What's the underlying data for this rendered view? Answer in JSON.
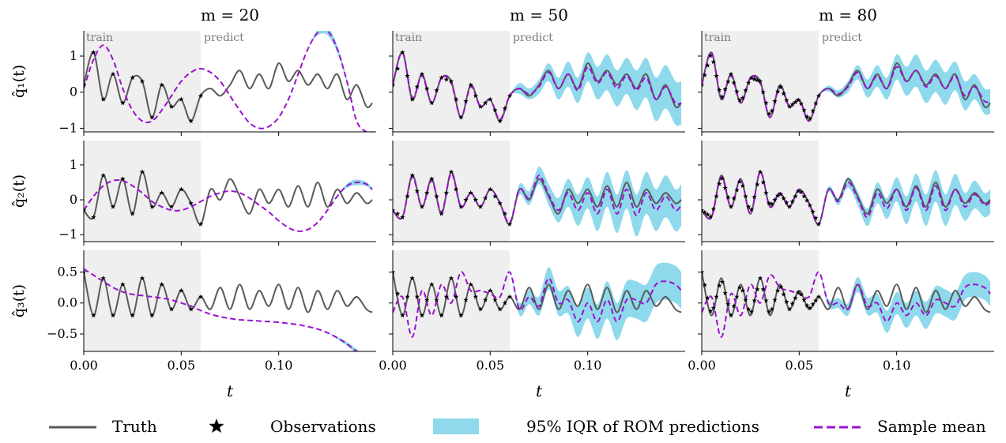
{
  "colors": {
    "truth": "#5a5a5a",
    "observations": "#000000",
    "band": "#8fd9ec",
    "mean": "#9b10cf",
    "train_region": "#efefef",
    "region_text": "#7a7a7a"
  },
  "legend": [
    {
      "label": "Truth",
      "kind": "line",
      "icon": "solid-gray-line"
    },
    {
      "label": "Observations",
      "kind": "marker",
      "icon": "star-icon"
    },
    {
      "label": "95% IQR of ROM predictions",
      "kind": "band",
      "icon": "cyan-band-swatch"
    },
    {
      "label": "Sample mean",
      "kind": "dashed",
      "icon": "dashed-purple-line"
    }
  ],
  "chart_data": {
    "type": "line",
    "layout": "3x3 grid",
    "column_titles": [
      "m = 20",
      "m = 50",
      "m = 80"
    ],
    "row_labels": [
      "q̂₁(t)",
      "q̂₂(t)",
      "q̂₃(t)"
    ],
    "xlabel": "t",
    "xlim": [
      0,
      0.15
    ],
    "xticks": [
      0.0,
      0.05,
      0.1
    ],
    "xtick_labels": [
      "0.00",
      "0.05",
      "0.10"
    ],
    "train_end": 0.06,
    "region_labels": {
      "train": "train",
      "predict": "predict"
    },
    "rows": [
      {
        "ylim": [
          -1.1,
          1.7
        ],
        "yticks": [
          -1,
          0,
          1
        ],
        "ytick_labels": [
          "−1",
          "0",
          "1"
        ]
      },
      {
        "ylim": [
          -1.2,
          1.7
        ],
        "yticks": [
          -1,
          0,
          1
        ],
        "ytick_labels": [
          "−1",
          "0",
          "1"
        ]
      },
      {
        "ylim": [
          -0.78,
          0.85
        ],
        "yticks": [
          -0.5,
          0.0,
          0.5
        ],
        "ytick_labels": [
          "−0.5",
          "0.0",
          "0.5"
        ]
      }
    ],
    "x": [
      0.0,
      0.005,
      0.01,
      0.015,
      0.02,
      0.025,
      0.03,
      0.035,
      0.04,
      0.045,
      0.05,
      0.055,
      0.06,
      0.065,
      0.07,
      0.075,
      0.08,
      0.085,
      0.09,
      0.095,
      0.1,
      0.105,
      0.11,
      0.115,
      0.12,
      0.125,
      0.13,
      0.135,
      0.14,
      0.145,
      0.148
    ],
    "truth": [
      [
        0.2,
        1.1,
        -0.2,
        0.5,
        -0.3,
        0.4,
        0.3,
        -0.7,
        0.2,
        -0.4,
        -0.2,
        -0.8,
        -0.1,
        0.1,
        -0.1,
        0.2,
        0.6,
        0.1,
        0.5,
        0.1,
        0.8,
        0.3,
        0.6,
        0.2,
        0.5,
        0.1,
        0.5,
        -0.2,
        0.2,
        -0.4,
        -0.3
      ],
      [
        -0.3,
        -0.5,
        0.7,
        -0.2,
        0.6,
        -0.4,
        0.8,
        -0.2,
        0.2,
        -0.2,
        0.3,
        -0.1,
        -0.7,
        0.3,
        0.0,
        0.6,
        0.1,
        -0.4,
        0.3,
        -0.1,
        0.3,
        -0.2,
        0.4,
        -0.2,
        0.5,
        -0.2,
        0.3,
        -0.1,
        0.2,
        -0.1,
        0.0
      ],
      [
        0.5,
        -0.2,
        0.4,
        -0.2,
        0.3,
        -0.2,
        0.4,
        -0.2,
        0.3,
        -0.1,
        0.2,
        -0.1,
        0.1,
        -0.1,
        0.25,
        -0.1,
        0.3,
        -0.1,
        0.2,
        -0.05,
        0.3,
        -0.1,
        0.25,
        -0.15,
        0.2,
        -0.1,
        0.2,
        -0.05,
        0.1,
        -0.1,
        -0.15
      ]
    ],
    "panels": [
      {
        "row": 0,
        "col": 0,
        "mean": [
          0.1,
          0.9,
          1.3,
          0.9,
          0.1,
          -0.5,
          -0.8,
          -0.8,
          -0.5,
          -0.1,
          0.3,
          0.55,
          0.65,
          0.55,
          0.3,
          -0.1,
          -0.5,
          -0.85,
          -1.0,
          -0.95,
          -0.7,
          -0.2,
          0.5,
          1.2,
          1.65,
          1.7,
          1.2,
          0.3,
          -0.8,
          -1.1,
          -1.1
        ],
        "half_width": [
          0,
          0,
          0,
          0,
          0,
          0,
          0,
          0,
          0,
          0,
          0,
          0,
          0,
          0,
          0,
          0,
          0,
          0,
          0,
          0,
          0,
          0,
          0,
          0,
          0.08,
          0.12,
          0.1,
          0.05,
          0,
          0,
          0
        ]
      },
      {
        "row": 0,
        "col": 1,
        "mean": [
          0.2,
          1.1,
          -0.15,
          0.45,
          -0.3,
          0.4,
          0.25,
          -0.7,
          0.15,
          -0.4,
          -0.2,
          -0.75,
          -0.1,
          0.1,
          -0.05,
          0.15,
          0.55,
          0.1,
          0.5,
          0.05,
          0.7,
          0.25,
          0.55,
          0.1,
          0.45,
          0.05,
          0.4,
          -0.2,
          0.15,
          -0.3,
          -0.3
        ],
        "half_width": [
          0,
          0,
          0,
          0,
          0,
          0,
          0,
          0,
          0,
          0,
          0,
          0,
          0,
          0.15,
          0.15,
          0.2,
          0.25,
          0.3,
          0.35,
          0.35,
          0.4,
          0.45,
          0.5,
          0.5,
          0.5,
          0.55,
          0.55,
          0.6,
          0.6,
          0.6,
          0.6
        ]
      },
      {
        "row": 0,
        "col": 2,
        "mean": [
          0.2,
          1.1,
          -0.15,
          0.45,
          -0.3,
          0.4,
          0.25,
          -0.7,
          0.15,
          -0.4,
          -0.2,
          -0.8,
          -0.1,
          0.1,
          -0.05,
          0.15,
          0.55,
          0.1,
          0.45,
          0.1,
          0.7,
          0.3,
          0.6,
          0.15,
          0.45,
          0.1,
          0.45,
          -0.1,
          0.15,
          -0.25,
          -0.25
        ],
        "half_width": [
          0,
          0,
          0,
          0,
          0,
          0,
          0,
          0,
          0,
          0,
          0,
          0,
          0,
          0.08,
          0.1,
          0.15,
          0.2,
          0.25,
          0.3,
          0.3,
          0.35,
          0.4,
          0.45,
          0.45,
          0.45,
          0.45,
          0.4,
          0.4,
          0.35,
          0.35,
          0.35
        ]
      },
      {
        "row": 1,
        "col": 0,
        "mean": [
          -0.3,
          0.1,
          0.4,
          0.55,
          0.55,
          0.4,
          0.2,
          -0.05,
          -0.2,
          -0.3,
          -0.3,
          -0.2,
          -0.05,
          0.1,
          0.2,
          0.25,
          0.2,
          0.05,
          -0.15,
          -0.35,
          -0.6,
          -0.8,
          -0.9,
          -0.85,
          -0.65,
          -0.3,
          0.1,
          0.4,
          0.5,
          0.45,
          0.3
        ],
        "half_width": [
          0,
          0,
          0,
          0,
          0,
          0,
          0,
          0,
          0,
          0,
          0,
          0,
          0,
          0,
          0,
          0,
          0,
          0,
          0,
          0,
          0,
          0,
          0,
          0,
          0,
          0,
          0,
          0.06,
          0.08,
          0.06,
          0.04
        ]
      },
      {
        "row": 1,
        "col": 1,
        "mean": [
          -0.3,
          -0.5,
          0.65,
          -0.2,
          0.55,
          -0.35,
          0.75,
          -0.2,
          0.2,
          -0.2,
          0.3,
          -0.1,
          -0.65,
          0.3,
          0.05,
          0.7,
          0.15,
          -0.3,
          0.2,
          -0.3,
          0.2,
          -0.4,
          0.3,
          -0.4,
          0.3,
          -0.45,
          0.2,
          -0.3,
          0.1,
          -0.3,
          -0.15
        ],
        "half_width": [
          0,
          0,
          0,
          0,
          0,
          0,
          0,
          0,
          0,
          0,
          0,
          0,
          0,
          0.15,
          0.2,
          0.25,
          0.3,
          0.35,
          0.4,
          0.45,
          0.45,
          0.5,
          0.5,
          0.55,
          0.55,
          0.6,
          0.6,
          0.6,
          0.6,
          0.6,
          0.6
        ]
      },
      {
        "row": 1,
        "col": 2,
        "mean": [
          -0.3,
          -0.5,
          0.65,
          -0.2,
          0.6,
          -0.4,
          0.8,
          -0.2,
          0.2,
          -0.2,
          0.3,
          -0.1,
          -0.7,
          0.3,
          -0.05,
          0.5,
          0.05,
          -0.5,
          0.2,
          -0.25,
          0.3,
          -0.3,
          0.35,
          -0.3,
          0.4,
          -0.3,
          0.3,
          -0.2,
          0.15,
          -0.15,
          -0.05
        ],
        "half_width": [
          0,
          0,
          0,
          0,
          0,
          0,
          0,
          0,
          0,
          0,
          0,
          0,
          0,
          0.08,
          0.1,
          0.15,
          0.2,
          0.25,
          0.3,
          0.3,
          0.35,
          0.4,
          0.4,
          0.45,
          0.45,
          0.45,
          0.45,
          0.4,
          0.4,
          0.35,
          0.35
        ]
      },
      {
        "row": 2,
        "col": 0,
        "mean": [
          0.55,
          0.45,
          0.35,
          0.25,
          0.18,
          0.14,
          0.12,
          0.1,
          0.08,
          0.05,
          0.0,
          -0.05,
          -0.12,
          -0.18,
          -0.22,
          -0.25,
          -0.27,
          -0.28,
          -0.29,
          -0.3,
          -0.31,
          -0.33,
          -0.35,
          -0.38,
          -0.42,
          -0.48,
          -0.56,
          -0.66,
          -0.78,
          -0.9,
          -1.0
        ],
        "half_width": [
          0,
          0,
          0,
          0,
          0,
          0,
          0,
          0,
          0,
          0,
          0,
          0,
          0,
          0,
          0,
          0,
          0,
          0,
          0,
          0,
          0,
          0,
          0,
          0,
          0,
          0,
          0.02,
          0.03,
          0.04,
          0.05,
          0.05
        ]
      },
      {
        "row": 2,
        "col": 1,
        "mean": [
          -0.15,
          0.1,
          -0.55,
          0.2,
          -0.2,
          0.3,
          0.0,
          0.5,
          0.2,
          0.2,
          0.15,
          0.1,
          0.5,
          -0.1,
          0.1,
          -0.05,
          0.4,
          0.0,
          0.05,
          -0.3,
          0.0,
          -0.3,
          0.05,
          -0.3,
          0.05,
          0.05,
          0.0,
          0.3,
          0.35,
          0.3,
          0.2
        ],
        "half_width": [
          0,
          0,
          0,
          0,
          0,
          0,
          0,
          0,
          0,
          0,
          0,
          0,
          0,
          0.1,
          0.12,
          0.15,
          0.18,
          0.2,
          0.22,
          0.25,
          0.25,
          0.28,
          0.3,
          0.3,
          0.3,
          0.3,
          0.3,
          0.3,
          0.3,
          0.3,
          0.3
        ]
      },
      {
        "row": 2,
        "col": 2,
        "mean": [
          -0.15,
          0.1,
          -0.55,
          0.15,
          -0.2,
          0.3,
          0.0,
          0.45,
          0.25,
          0.2,
          0.15,
          0.1,
          0.5,
          0.0,
          0.0,
          -0.1,
          0.3,
          -0.05,
          0.0,
          -0.3,
          0.0,
          -0.2,
          0.0,
          -0.2,
          0.05,
          0.0,
          -0.05,
          0.25,
          0.3,
          0.25,
          0.15
        ],
        "half_width": [
          0,
          0,
          0,
          0,
          0,
          0,
          0,
          0,
          0,
          0,
          0,
          0,
          0,
          0.06,
          0.08,
          0.1,
          0.12,
          0.14,
          0.16,
          0.18,
          0.18,
          0.2,
          0.2,
          0.22,
          0.22,
          0.22,
          0.22,
          0.2,
          0.2,
          0.2,
          0.2
        ]
      }
    ],
    "observations": [
      {
        "col": 0,
        "t": [
          0.0,
          0.005,
          0.01,
          0.015,
          0.02,
          0.025,
          0.03,
          0.035,
          0.04,
          0.045,
          0.05,
          0.055,
          0.06
        ]
      },
      {
        "col": 1,
        "t": [
          0.0,
          0.0025,
          0.005,
          0.0075,
          0.01,
          0.0125,
          0.015,
          0.0175,
          0.02,
          0.0225,
          0.025,
          0.0275,
          0.03,
          0.0325,
          0.035,
          0.0375,
          0.04,
          0.0425,
          0.045,
          0.0475,
          0.05,
          0.0525,
          0.055,
          0.0575,
          0.06
        ]
      },
      {
        "col": 2,
        "t": [
          0.0,
          0.0015,
          0.003,
          0.0045,
          0.006,
          0.0075,
          0.009,
          0.0105,
          0.012,
          0.0135,
          0.015,
          0.0165,
          0.018,
          0.0195,
          0.021,
          0.0225,
          0.024,
          0.0255,
          0.027,
          0.0285,
          0.03,
          0.0315,
          0.033,
          0.0345,
          0.036,
          0.0375,
          0.039,
          0.0405,
          0.042,
          0.0435,
          0.045,
          0.0465,
          0.048,
          0.0495,
          0.051,
          0.0525,
          0.054,
          0.0555,
          0.057,
          0.0585,
          0.06
        ]
      }
    ]
  }
}
